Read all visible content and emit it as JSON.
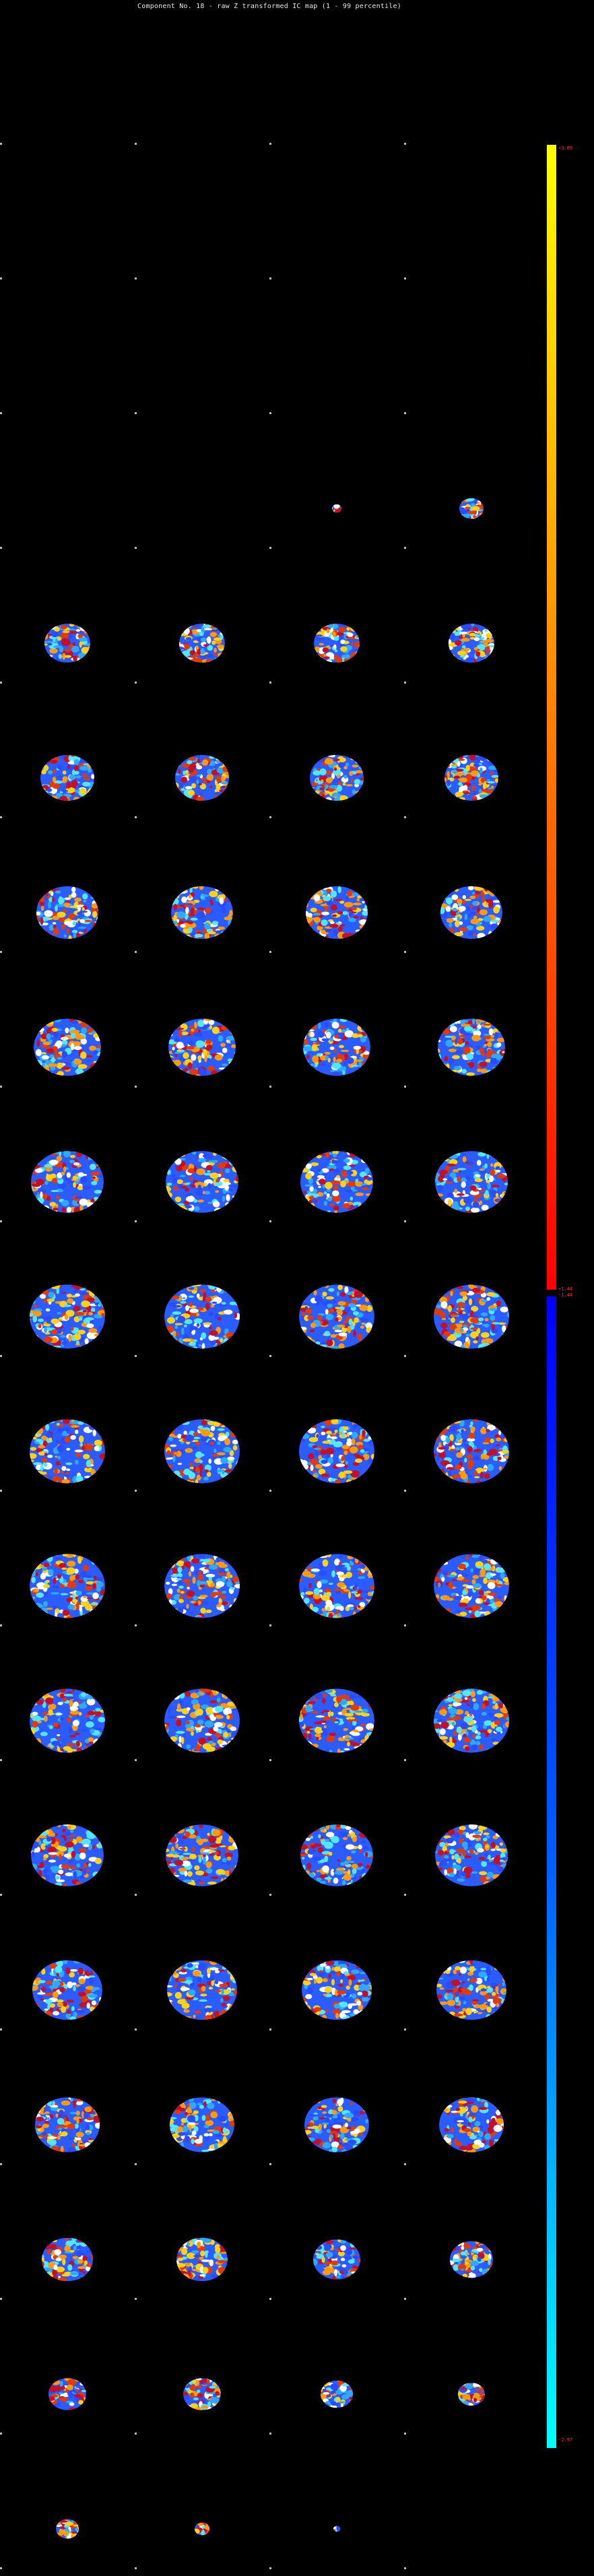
{
  "title": "Component No. 18 - raw Z transformed IC map (1 - 99 percentile)",
  "colorbar": {
    "max_label": "+3.89",
    "pos_min_label": "+1.44",
    "neg_max_label": "-1.44",
    "min_label": "-2.97",
    "pos_colors": [
      "#ff0000",
      "#ff8000",
      "#ffff00"
    ],
    "neg_colors": [
      "#00ffff",
      "#0060ff",
      "#0000ff"
    ]
  },
  "slice_grid": {
    "rows": 19,
    "cols": 4,
    "row_widths": [
      [
        0,
        0,
        0,
        0
      ],
      [
        0,
        0,
        0,
        0
      ],
      [
        0,
        0,
        0,
        0
      ],
      [
        0,
        0,
        14,
        36
      ],
      [
        68,
        68,
        68,
        68
      ],
      [
        80,
        80,
        80,
        80
      ],
      [
        92,
        92,
        92,
        92
      ],
      [
        100,
        100,
        100,
        100
      ],
      [
        108,
        108,
        108,
        108
      ],
      [
        112,
        112,
        112,
        112
      ],
      [
        112,
        112,
        112,
        112
      ],
      [
        112,
        112,
        112,
        112
      ],
      [
        112,
        112,
        112,
        112
      ],
      [
        108,
        108,
        108,
        108
      ],
      [
        104,
        104,
        104,
        104
      ],
      [
        96,
        96,
        96,
        96
      ],
      [
        76,
        76,
        70,
        64
      ],
      [
        56,
        56,
        48,
        40
      ],
      [
        34,
        22,
        10,
        0
      ]
    ]
  }
}
